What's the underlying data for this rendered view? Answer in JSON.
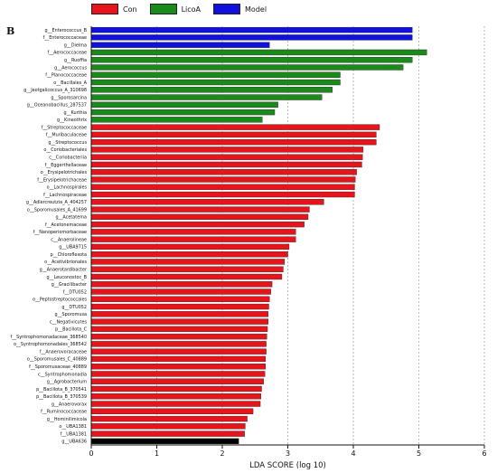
{
  "panel_label": "B",
  "colors": {
    "Con": "#e8141b",
    "LicoA": "#1a8a1a",
    "Model": "#1111dd"
  },
  "legend": [
    {
      "name": "Con",
      "color": "#e8141b"
    },
    {
      "name": "LicoA",
      "color": "#1a8a1a"
    },
    {
      "name": "Model",
      "color": "#1111dd"
    }
  ],
  "chart_data": {
    "type": "bar",
    "orientation": "horizontal",
    "title": "",
    "xlabel": "LDA SCORE (log 10)",
    "ylabel": "",
    "xlim": [
      0,
      6
    ],
    "xticks": [
      0,
      1,
      2,
      3,
      4,
      5,
      6
    ],
    "grid": true,
    "legend_position": "top-left",
    "categories": [
      "g__Enterococcus_B",
      "f__Enterococcaceae",
      "g__Dielma",
      "f__Aerococcaceae",
      "g__Ruoffia",
      "g__Aerococcus",
      "f__Planococcaceae",
      "o__Bacillales_A",
      "g__Jeotgalicoccus_A_310698",
      "g__Sporosarcina",
      "g__Oceanobacillus_287537",
      "g__Kurthia",
      "g__Kineothrix",
      "f__Streptococcaceae",
      "f__Muribaculaceae",
      "g__Streptococcus",
      "o__Coriobacteriales",
      "c__Coriobacteriia",
      "f__Eggerthellaceae",
      "o__Erysipelotrichales",
      "f__Erysipelotrichaceae",
      "o__Lachnospirales",
      "f__Lachnospiraceae",
      "g__Adlercreutzia_A_404257",
      "o__Sporomusales_A_41699",
      "g__Acetatema",
      "f__Acetonemaceae",
      "f__Nanoperiomorbaceae",
      "c__Anaerolineae",
      "g__UBA9715",
      "p__Chloroflexota",
      "o__Acetivibrionales",
      "g__Anaerotardibacter",
      "g__Leuconostoc_B",
      "g__Gracilibacter",
      "f__DTU052",
      "o__Peptostreptococcales",
      "g__DTU052",
      "g__Sporomusa",
      "c__Negativicutes",
      "p__Bacillota_C",
      "f__Syntrophomonadaceae_368540",
      "o__Syntrophomonadales_368542",
      "f__Anaerovoracaceae",
      "o__Sporomusales_C_40889",
      "f__Sporomusaceae_40889",
      "c__Syntrophomonadia",
      "g__Agrobacterium",
      "p__Bacillota_B_370541",
      "p__Bacillota_B_370539",
      "g__Anaerovorax",
      "f__Ruminococcaceae",
      "g__Hominilimicola",
      "o__UBA1381",
      "f__UBA1381",
      "g__UBA636"
    ],
    "groups": [
      "Model",
      "Model",
      "Model",
      "LicoA",
      "LicoA",
      "LicoA",
      "LicoA",
      "LicoA",
      "LicoA",
      "LicoA",
      "LicoA",
      "LicoA",
      "LicoA",
      "Con",
      "Con",
      "Con",
      "Con",
      "Con",
      "Con",
      "Con",
      "Con",
      "Con",
      "Con",
      "Con",
      "Con",
      "Con",
      "Con",
      "Con",
      "Con",
      "Con",
      "Con",
      "Con",
      "Con",
      "Con",
      "Con",
      "Con",
      "Con",
      "Con",
      "Con",
      "Con",
      "Con",
      "Con",
      "Con",
      "Con",
      "Con",
      "Con",
      "Con",
      "Con",
      "Con",
      "Con",
      "Con",
      "Con",
      "Con",
      "Con",
      "Con"
    ],
    "values": [
      4.9,
      4.9,
      2.72,
      5.12,
      4.9,
      4.76,
      3.8,
      3.8,
      3.68,
      3.52,
      2.85,
      2.8,
      2.61,
      4.4,
      4.35,
      4.35,
      4.15,
      4.14,
      4.13,
      4.05,
      4.03,
      4.02,
      4.02,
      3.55,
      3.33,
      3.31,
      3.25,
      3.12,
      3.12,
      3.02,
      3.0,
      2.95,
      2.93,
      2.91,
      2.76,
      2.74,
      2.72,
      2.71,
      2.7,
      2.7,
      2.69,
      2.68,
      2.67,
      2.67,
      2.66,
      2.66,
      2.65,
      2.63,
      2.6,
      2.59,
      2.58,
      2.47,
      2.38,
      2.35,
      2.34,
      2.25
    ]
  }
}
